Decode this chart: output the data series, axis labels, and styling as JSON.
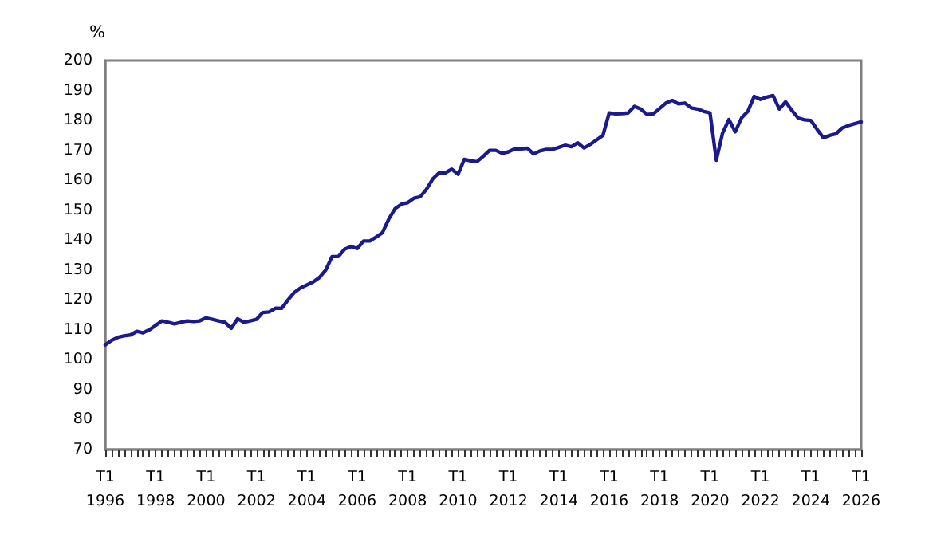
{
  "chart_data": {
    "type": "line",
    "ylabel": "%",
    "categories": [
      "T1\n1996",
      null,
      null,
      null,
      null,
      null,
      null,
      null,
      "T1\n1998",
      null,
      null,
      null,
      null,
      null,
      null,
      null,
      "T1\n2000",
      null,
      null,
      null,
      null,
      null,
      null,
      null,
      "T1\n2002",
      null,
      null,
      null,
      null,
      null,
      null,
      null,
      "T1\n2004",
      null,
      null,
      null,
      null,
      null,
      null,
      null,
      "T1\n2006",
      null,
      null,
      null,
      null,
      null,
      null,
      null,
      "T1\n2008",
      null,
      null,
      null,
      null,
      null,
      null,
      null,
      "T1\n2010",
      null,
      null,
      null,
      null,
      null,
      null,
      null,
      "T1\n2012",
      null,
      null,
      null,
      null,
      null,
      null,
      null,
      "T1\n2014",
      null,
      null,
      null,
      null,
      null,
      null,
      null,
      "T1\n2016",
      null,
      null,
      null,
      null,
      null,
      null,
      null,
      "T1\n2018",
      null,
      null,
      null,
      null,
      null,
      null,
      null,
      "T1\n2020",
      null,
      null,
      null,
      null,
      null,
      null,
      null,
      "T1\n2022",
      null,
      null,
      null,
      null,
      null,
      null,
      null,
      "T1\n2024",
      null,
      null,
      null,
      null,
      null,
      null,
      null,
      "T1\n2026"
    ],
    "series": [
      {
        "color": "#1a1a8c",
        "values": [
          105,
          106.5,
          107.5,
          108,
          108.3,
          109.5,
          109,
          110,
          111.5,
          113,
          112.5,
          112,
          112.5,
          113,
          112.8,
          113,
          114,
          113.5,
          113,
          112.5,
          110.5,
          113.7,
          112.5,
          113,
          113.5,
          115.8,
          116,
          117.2,
          117.2,
          120,
          122.5,
          124,
          125,
          126,
          127.5,
          130,
          134.5,
          134.5,
          137,
          137.8,
          137.2,
          139.7,
          139.7,
          141,
          142.5,
          147,
          150.5,
          152,
          152.5,
          154,
          154.5,
          157,
          160.5,
          162.5,
          162.5,
          163.7,
          162,
          167,
          166.5,
          166.2,
          168,
          170,
          170,
          169,
          169.5,
          170.5,
          170.5,
          170.7,
          168.8,
          169.8,
          170.3,
          170.3,
          171,
          171.7,
          171.2,
          172.5,
          170.8,
          172,
          173.5,
          175,
          182.5,
          182.2,
          182.3,
          182.5,
          184.7,
          183.8,
          182,
          182.2,
          184,
          185.8,
          186.7,
          185.5,
          185.8,
          184.2,
          183.8,
          183,
          182.5,
          166.7,
          175.8,
          180.3,
          176.2,
          180.8,
          183,
          188,
          187,
          187.8,
          188.3,
          183.8,
          186.2,
          183.3,
          180.8,
          180.2,
          180,
          177,
          174.2,
          175,
          175.5,
          177.5,
          178.3,
          178.9,
          179.5
        ]
      }
    ],
    "ylim": [
      70,
      200
    ],
    "yticks": [
      70,
      80,
      90,
      100,
      110,
      120,
      130,
      140,
      150,
      160,
      170,
      180,
      190,
      200
    ],
    "grid": false,
    "marker": "none",
    "line_style": "solid"
  }
}
